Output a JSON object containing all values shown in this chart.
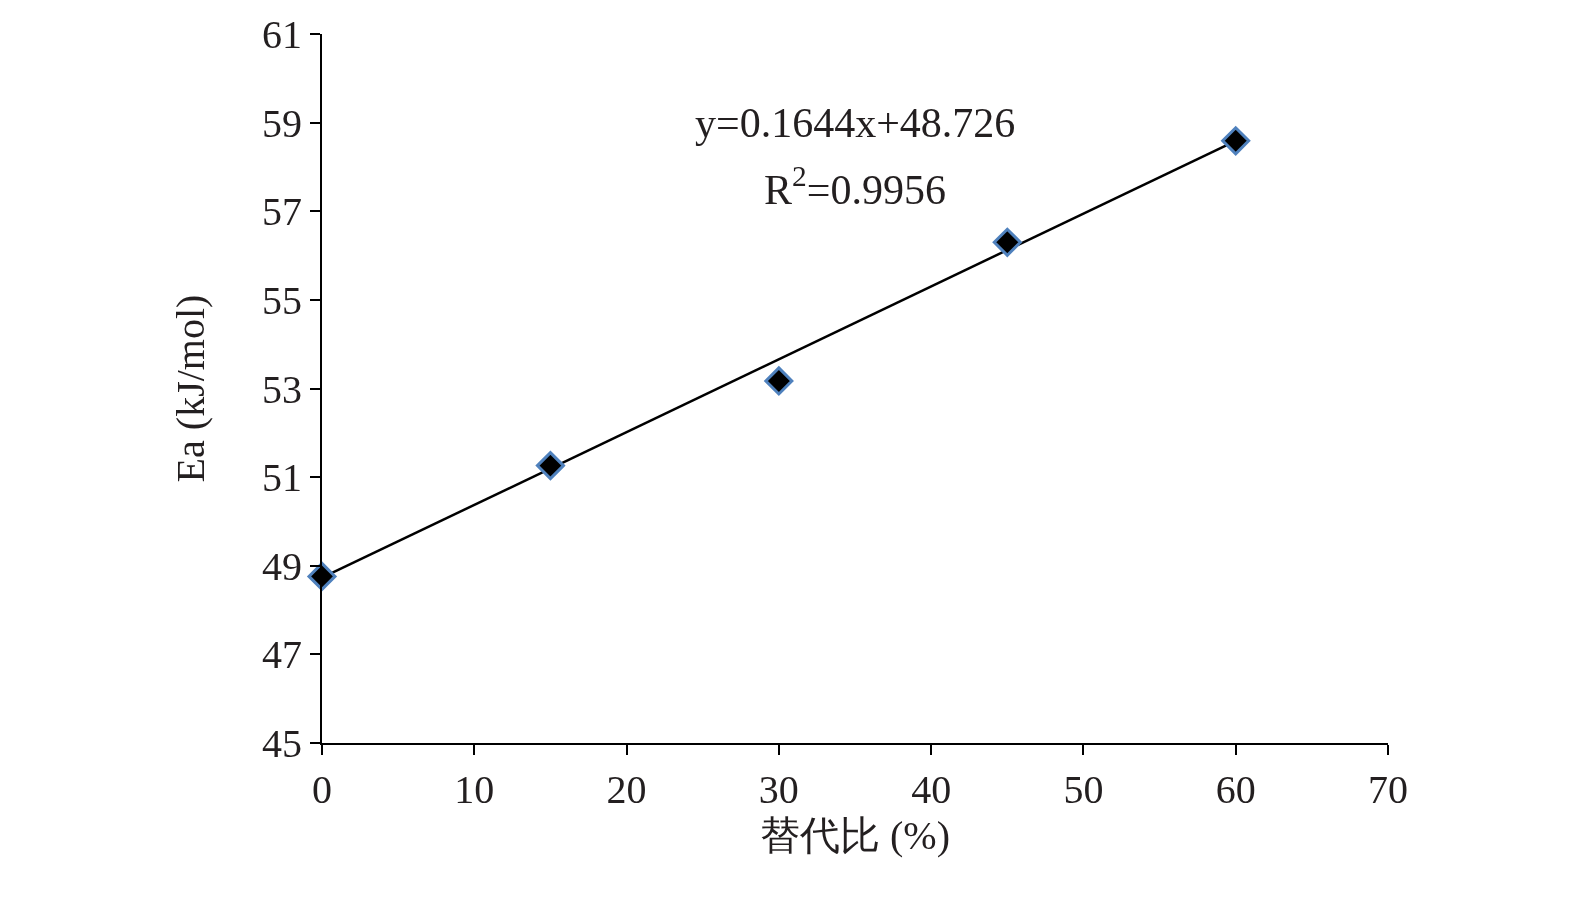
{
  "chart_data": {
    "type": "scatter",
    "xlabel": "替代比 (%)",
    "ylabel": "Ea (kJ/mol)",
    "series": [
      {
        "color": "#000000",
        "marker": "diamond",
        "x": [
          0,
          15,
          30,
          45,
          60
        ],
        "values": [
          48.76,
          51.26,
          53.17,
          56.3,
          58.59
        ]
      },
      {
        "type": "line",
        "color": "#000000",
        "marker": "none",
        "line_style": "solid",
        "x": [
          0,
          60
        ],
        "values": [
          48.73,
          58.59
        ]
      }
    ],
    "annotations": [
      "y=0.1644x+48.726",
      "R$^{2}$=0.9956"
    ],
    "xlim": [
      0,
      70
    ],
    "xticks": [
      0,
      10,
      20,
      30,
      40,
      50,
      60,
      70
    ],
    "ylim": [
      45,
      61
    ],
    "yticks": [
      45,
      47,
      49,
      51,
      53,
      55,
      57,
      59,
      61
    ]
  }
}
